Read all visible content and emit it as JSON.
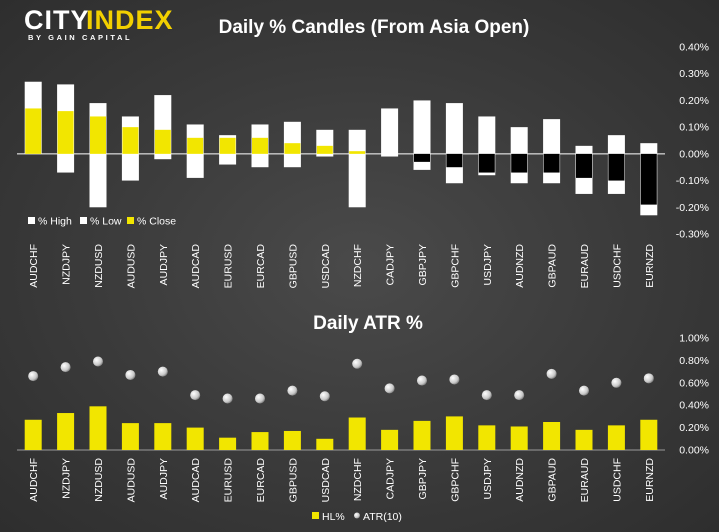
{
  "logo": {
    "text_city": "CITY",
    "text_index": "INDEX",
    "tagline": "BY GAIN CAPITAL",
    "accent": "#f2d000"
  },
  "chart_data": [
    {
      "type": "bar",
      "title": "Daily % Candles (From Asia Open)",
      "categories": [
        "AUDCHF",
        "NZDJPY",
        "NZDUSD",
        "AUDUSD",
        "AUDJPY",
        "AUDCAD",
        "EURUSD",
        "EURCAD",
        "GBPUSD",
        "USDCAD",
        "NZDCHF",
        "CADJPY",
        "GBPJPY",
        "GBPCHF",
        "USDJPY",
        "AUDNZD",
        "GBPAUD",
        "EURAUD",
        "USDCHF",
        "EURNZD"
      ],
      "series": [
        {
          "name": "% High",
          "values": [
            0.27,
            0.26,
            0.19,
            0.14,
            0.22,
            0.11,
            0.07,
            0.11,
            0.12,
            0.09,
            0.09,
            0.17,
            0.2,
            0.19,
            0.14,
            0.1,
            0.13,
            0.03,
            0.07,
            0.04
          ],
          "color": "#ffffff"
        },
        {
          "name": "% Low",
          "values": [
            -0.0,
            -0.07,
            -0.2,
            -0.1,
            -0.02,
            -0.09,
            -0.04,
            -0.05,
            -0.05,
            -0.01,
            -0.2,
            -0.01,
            -0.06,
            -0.11,
            -0.08,
            -0.11,
            -0.11,
            -0.15,
            -0.15,
            -0.23
          ],
          "color": "#ffffff"
        },
        {
          "name": "% Close",
          "values": [
            0.17,
            0.16,
            0.14,
            0.1,
            0.09,
            0.06,
            0.06,
            0.06,
            0.04,
            0.03,
            0.01,
            0.0,
            -0.03,
            -0.05,
            -0.07,
            -0.07,
            -0.07,
            -0.09,
            -0.1,
            -0.19
          ],
          "color": "#f2e600"
        }
      ],
      "yticks": [
        "0.40%",
        "0.30%",
        "0.20%",
        "0.10%",
        "0.00%",
        "-0.10%",
        "-0.20%",
        "-0.30%"
      ],
      "ylim": [
        -0.3,
        0.4
      ],
      "legend_position": "bottom-left"
    },
    {
      "type": "bar",
      "title": "Daily ATR %",
      "categories": [
        "AUDCHF",
        "NZDJPY",
        "NZDUSD",
        "AUDUSD",
        "AUDJPY",
        "AUDCAD",
        "EURUSD",
        "EURCAD",
        "GBPUSD",
        "USDCAD",
        "NZDCHF",
        "CADJPY",
        "GBPJPY",
        "GBPCHF",
        "USDJPY",
        "AUDNZD",
        "GBPAUD",
        "EURAUD",
        "USDCHF",
        "EURNZD"
      ],
      "series": [
        {
          "name": "HL%",
          "values": [
            0.27,
            0.33,
            0.39,
            0.24,
            0.24,
            0.2,
            0.11,
            0.16,
            0.17,
            0.1,
            0.29,
            0.18,
            0.26,
            0.3,
            0.22,
            0.21,
            0.25,
            0.18,
            0.22,
            0.27
          ],
          "color": "#f2e600"
        },
        {
          "name": "ATR(10)",
          "values": [
            0.66,
            0.74,
            0.79,
            0.67,
            0.7,
            0.49,
            0.46,
            0.46,
            0.53,
            0.48,
            0.77,
            0.55,
            0.62,
            0.63,
            0.49,
            0.49,
            0.68,
            0.53,
            0.6,
            0.64
          ],
          "color": "#e0e0e0"
        }
      ],
      "yticks": [
        "1.00%",
        "0.80%",
        "0.60%",
        "0.40%",
        "0.20%",
        "0.00%"
      ],
      "ylim": [
        0,
        1.0
      ],
      "legend_position": "bottom-center"
    }
  ]
}
